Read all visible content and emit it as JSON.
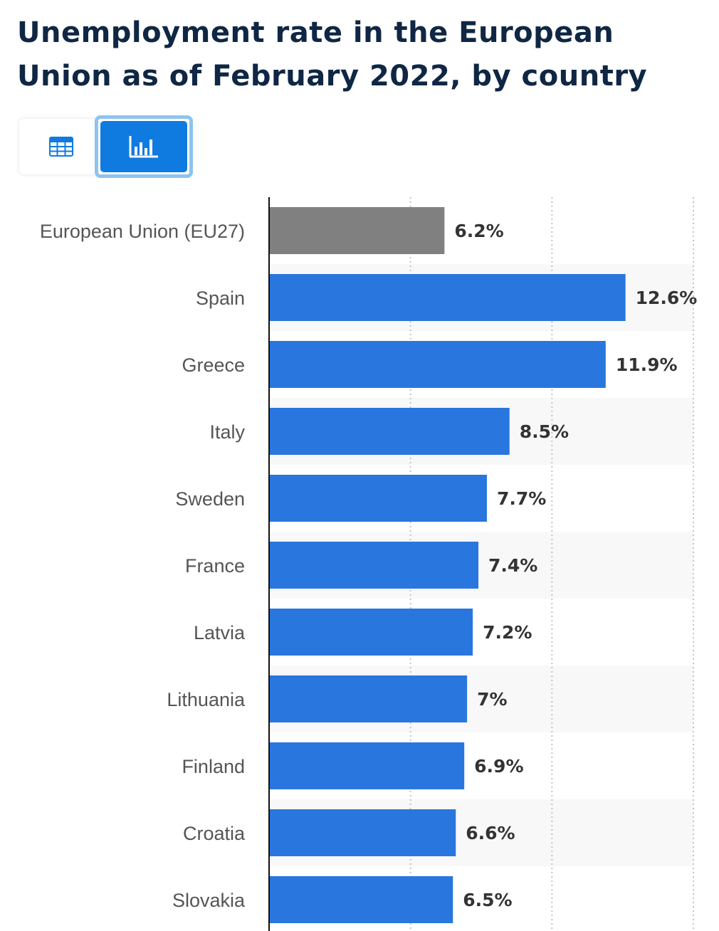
{
  "title": "Unemployment rate in the European Union as of February 2022, by country",
  "view_toggle": {
    "table_icon": "table-icon",
    "chart_icon": "bar-chart-icon",
    "active": "chart"
  },
  "colors": {
    "title": "#0f2744",
    "bar": "#2976de",
    "bar_highlight": "#808080",
    "toggle_active": "#0f7be1",
    "stripe": "#f8f8f8"
  },
  "chart_data": {
    "type": "bar",
    "orientation": "horizontal",
    "title": "Unemployment rate in the European Union as of February 2022, by country",
    "xlabel": "",
    "ylabel": "",
    "xlim": [
      0,
      15
    ],
    "grid": true,
    "categories": [
      "European Union (EU27)",
      "Spain",
      "Greece",
      "Italy",
      "Sweden",
      "France",
      "Latvia",
      "Lithuania",
      "Finland",
      "Croatia",
      "Slovakia"
    ],
    "values": [
      6.2,
      12.6,
      11.9,
      8.5,
      7.7,
      7.4,
      7.2,
      7.0,
      6.9,
      6.6,
      6.5
    ],
    "value_labels": [
      "6.2%",
      "12.6%",
      "11.9%",
      "8.5%",
      "7.7%",
      "7.4%",
      "7.2%",
      "7%",
      "6.9%",
      "6.6%",
      "6.5%"
    ],
    "highlight_index": 0
  }
}
